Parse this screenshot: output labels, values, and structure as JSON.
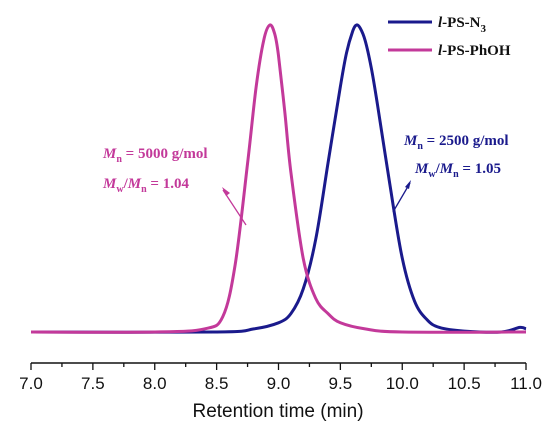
{
  "chart_data": {
    "type": "line",
    "xlabel": "Retention time (min)",
    "ylabel": "",
    "xlim": [
      7.0,
      11.0
    ],
    "x_ticks": [
      "7.0",
      "7.5",
      "8.0",
      "8.5",
      "9.0",
      "9.5",
      "10.0",
      "10.5",
      "11.0"
    ],
    "grid": false,
    "legend_position": "top-right",
    "series": [
      {
        "name": "l-PS-N3",
        "color": "#1a1a8c",
        "x": [
          7.0,
          8.5,
          8.8,
          9.0,
          9.1,
          9.2,
          9.3,
          9.4,
          9.5,
          9.55,
          9.6,
          9.63,
          9.66,
          9.7,
          9.75,
          9.8,
          9.9,
          10.0,
          10.1,
          10.2,
          10.3,
          10.5,
          10.8,
          10.95,
          11.0
        ],
        "values": [
          0.0,
          0.0,
          0.01,
          0.03,
          0.06,
          0.14,
          0.3,
          0.55,
          0.8,
          0.91,
          0.98,
          1.0,
          0.99,
          0.95,
          0.86,
          0.74,
          0.48,
          0.24,
          0.1,
          0.04,
          0.015,
          0.003,
          0.0,
          0.015,
          0.01
        ]
      },
      {
        "name": "l-PS-PhOH",
        "color": "#c3399a",
        "x": [
          7.0,
          8.0,
          8.4,
          8.55,
          8.65,
          8.75,
          8.82,
          8.88,
          8.93,
          8.97,
          9.0,
          9.05,
          9.1,
          9.2,
          9.3,
          9.4,
          9.5,
          9.7,
          10.0,
          11.0
        ],
        "values": [
          0.0,
          0.0,
          0.01,
          0.05,
          0.22,
          0.55,
          0.8,
          0.95,
          1.0,
          0.97,
          0.9,
          0.72,
          0.52,
          0.24,
          0.11,
          0.06,
          0.03,
          0.01,
          0.0,
          0.0
        ]
      }
    ],
    "legend_labels": [
      {
        "italic": "l",
        "text": "-PS-N",
        "sub": "3"
      },
      {
        "italic": "l",
        "text": "-PS-PhOH",
        "sub": ""
      }
    ],
    "annotations": [
      {
        "series": "l-PS-PhOH",
        "color": "#c3399a",
        "line1": {
          "M": "M",
          "sub": "n",
          "rest": " = 5000 g/mol"
        },
        "line2": {
          "M1": "M",
          "sub1": "w",
          "slash": "/",
          "M2": "M",
          "sub2": "n",
          "rest": " = 1.04"
        }
      },
      {
        "series": "l-PS-N3",
        "color": "#1a1a8c",
        "line1": {
          "M": "M",
          "sub": "n",
          "rest": " = 2500 g/mol"
        },
        "line2": {
          "M1": "M",
          "sub1": "w",
          "slash": "/",
          "M2": "M",
          "sub2": "n",
          "rest": " = 1.05"
        }
      }
    ]
  }
}
